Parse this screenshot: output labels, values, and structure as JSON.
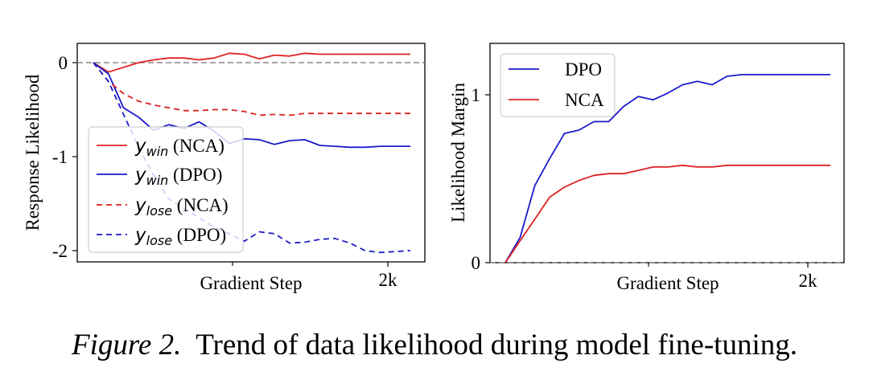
{
  "caption": {
    "label": "Figure 2.",
    "text": "Trend of data likelihood during model fine-tuning."
  },
  "colors": {
    "red": "#dd2222",
    "blue": "#1a1acc",
    "zero_line": "#888888"
  },
  "chart_data": [
    {
      "type": "line",
      "xlabel": "Gradient Step",
      "ylabel": "Response Likelihood",
      "x_tick_label": "2k",
      "xlim": [
        0,
        2100
      ],
      "ylim": [
        -2.1,
        0.22
      ],
      "y_ticks": [
        0,
        -1,
        -2
      ],
      "y_tick_labels": [
        "0",
        "-1",
        "-2"
      ],
      "zero_line": 0,
      "legend_position": "lower-left",
      "series": [
        {
          "name": "NCA",
          "var": "y",
          "sub": "win",
          "color": "red",
          "dash": false,
          "x": [
            0,
            100,
            200,
            300,
            400,
            500,
            600,
            700,
            800,
            900,
            1000,
            1100,
            1200,
            1300,
            1400,
            1500,
            1600,
            1700,
            1800,
            1900,
            2000,
            2100
          ],
          "y": [
            0.0,
            -0.1,
            -0.05,
            0.0,
            0.03,
            0.05,
            0.05,
            0.03,
            0.05,
            0.1,
            0.09,
            0.04,
            0.08,
            0.07,
            0.1,
            0.09,
            0.09,
            0.09,
            0.09,
            0.09,
            0.09,
            0.09
          ]
        },
        {
          "name": "DPO",
          "var": "y",
          "sub": "win",
          "color": "blue",
          "dash": false,
          "x": [
            0,
            100,
            200,
            300,
            400,
            500,
            600,
            700,
            800,
            900,
            1000,
            1100,
            1200,
            1300,
            1400,
            1500,
            1600,
            1700,
            1800,
            1900,
            2000,
            2100
          ],
          "y": [
            0.0,
            -0.12,
            -0.48,
            -0.58,
            -0.72,
            -0.66,
            -0.7,
            -0.63,
            -0.73,
            -0.86,
            -0.81,
            -0.82,
            -0.87,
            -0.83,
            -0.82,
            -0.88,
            -0.89,
            -0.9,
            -0.9,
            -0.89,
            -0.89,
            -0.89
          ]
        },
        {
          "name": "NCA",
          "var": "y",
          "sub": "lose",
          "color": "red",
          "dash": true,
          "x": [
            0,
            100,
            200,
            300,
            400,
            500,
            600,
            700,
            800,
            900,
            1000,
            1100,
            1200,
            1300,
            1400,
            1500,
            1600,
            1700,
            1800,
            1900,
            2000,
            2100
          ],
          "y": [
            0.0,
            -0.2,
            -0.33,
            -0.41,
            -0.45,
            -0.48,
            -0.51,
            -0.51,
            -0.5,
            -0.5,
            -0.52,
            -0.56,
            -0.55,
            -0.56,
            -0.54,
            -0.54,
            -0.54,
            -0.54,
            -0.54,
            -0.54,
            -0.54,
            -0.54
          ]
        },
        {
          "name": "DPO",
          "var": "y",
          "sub": "lose",
          "color": "blue",
          "dash": true,
          "x": [
            0,
            100,
            200,
            300,
            400,
            500,
            600,
            700,
            800,
            900,
            1000,
            1100,
            1200,
            1300,
            1400,
            1500,
            1600,
            1700,
            1800,
            1900,
            2000,
            2100
          ],
          "y": [
            0.0,
            -0.2,
            -0.55,
            -0.9,
            -1.2,
            -1.45,
            -1.55,
            -1.65,
            -1.75,
            -1.82,
            -1.9,
            -1.8,
            -1.82,
            -1.92,
            -1.91,
            -1.88,
            -1.87,
            -1.92,
            -2.0,
            -2.02,
            -2.01,
            -2.0
          ]
        }
      ]
    },
    {
      "type": "line",
      "xlabel": "Gradient Step",
      "ylabel": "Likelihood Margin",
      "x_tick_label": "2k",
      "xlim": [
        0,
        2200
      ],
      "ylim": [
        0,
        1.3
      ],
      "y_ticks": [
        0,
        1
      ],
      "y_tick_labels": [
        "0",
        "1"
      ],
      "zero_line": 0,
      "legend_position": "top-left",
      "series": [
        {
          "name": "DPO",
          "color": "blue",
          "dash": false,
          "x": [
            0,
            100,
            200,
            300,
            400,
            500,
            600,
            700,
            800,
            900,
            1000,
            1100,
            1200,
            1300,
            1400,
            1500,
            1600,
            1700,
            1800,
            1900,
            2000,
            2100,
            2200
          ],
          "y": [
            0.0,
            0.15,
            0.46,
            0.62,
            0.77,
            0.79,
            0.84,
            0.84,
            0.93,
            0.99,
            0.97,
            1.01,
            1.06,
            1.08,
            1.06,
            1.11,
            1.12,
            1.12,
            1.12,
            1.12,
            1.12,
            1.12,
            1.12
          ]
        },
        {
          "name": "NCA",
          "color": "red",
          "dash": false,
          "x": [
            0,
            100,
            200,
            300,
            400,
            500,
            600,
            700,
            800,
            900,
            1000,
            1100,
            1200,
            1300,
            1400,
            1500,
            1600,
            1700,
            1800,
            1900,
            2000,
            2100,
            2200
          ],
          "y": [
            0.0,
            0.13,
            0.26,
            0.39,
            0.45,
            0.49,
            0.52,
            0.53,
            0.53,
            0.55,
            0.57,
            0.57,
            0.58,
            0.57,
            0.57,
            0.58,
            0.58,
            0.58,
            0.58,
            0.58,
            0.58,
            0.58,
            0.58
          ]
        }
      ]
    }
  ]
}
